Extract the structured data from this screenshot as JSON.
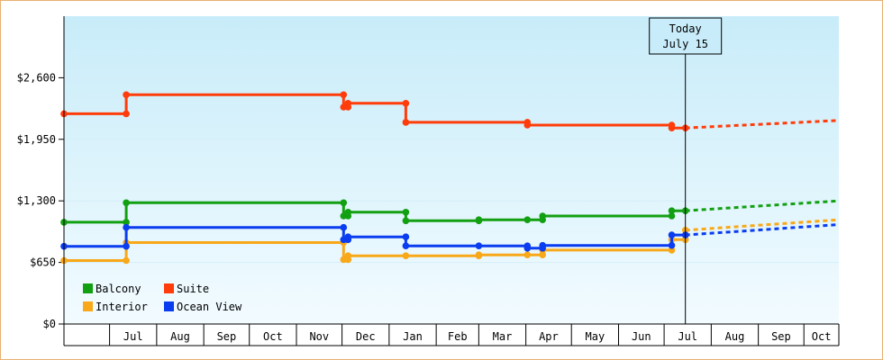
{
  "chart_data": {
    "type": "line",
    "title": "",
    "xlabel": "",
    "ylabel": "",
    "x_axis_type": "date",
    "x_range": [
      "2016-06-01",
      "2017-10-24"
    ],
    "ylim": [
      0,
      3250
    ],
    "y_ticks": [
      0,
      650,
      1300,
      1950,
      2600
    ],
    "y_tick_labels": [
      "$0",
      "$650",
      "$1,300",
      "$1,950",
      "$2,600"
    ],
    "x_tick_labels": [
      {
        "label": "Jul",
        "date": "2016-07-01"
      },
      {
        "label": "Aug",
        "date": "2016-08-01"
      },
      {
        "label": "Sep",
        "date": "2016-09-01"
      },
      {
        "label": "Oct",
        "date": "2016-10-01"
      },
      {
        "label": "Nov",
        "date": "2016-11-01"
      },
      {
        "label": "Dec",
        "date": "2016-12-01"
      },
      {
        "label": "Jan",
        "date": "2017-01-01"
      },
      {
        "label": "Feb",
        "date": "2017-02-01"
      },
      {
        "label": "Mar",
        "date": "2017-03-01"
      },
      {
        "label": "Apr",
        "date": "2017-04-01"
      },
      {
        "label": "May",
        "date": "2017-05-01"
      },
      {
        "label": "Jun",
        "date": "2017-06-01"
      },
      {
        "label": "Jul",
        "date": "2017-07-01"
      },
      {
        "label": "Aug",
        "date": "2017-08-01"
      },
      {
        "label": "Sep",
        "date": "2017-09-01"
      },
      {
        "label": "Oct",
        "date": "2017-10-01"
      }
    ],
    "today": {
      "date": "2017-07-15",
      "label_line1": "Today",
      "label_line2": "July 15"
    },
    "legend_position": "bottom-left",
    "series": [
      {
        "name": "Balcony",
        "color": "#12a012",
        "points": [
          [
            "2016-06-01",
            1075
          ],
          [
            "2016-07-12",
            1075
          ],
          [
            "2016-07-12",
            1280
          ],
          [
            "2016-12-02",
            1280
          ],
          [
            "2016-12-02",
            1140
          ],
          [
            "2016-12-05",
            1140
          ],
          [
            "2016-12-05",
            1180
          ],
          [
            "2017-01-12",
            1180
          ],
          [
            "2017-01-12",
            1090
          ],
          [
            "2017-03-01",
            1090
          ],
          [
            "2017-03-01",
            1100
          ],
          [
            "2017-04-02",
            1100
          ],
          [
            "2017-04-12",
            1100
          ],
          [
            "2017-04-12",
            1140
          ],
          [
            "2017-07-06",
            1140
          ],
          [
            "2017-07-06",
            1195
          ],
          [
            "2017-07-15",
            1195
          ]
        ],
        "forecast": [
          [
            "2017-07-15",
            1195
          ],
          [
            "2017-10-24",
            1300
          ]
        ]
      },
      {
        "name": "Suite",
        "color": "#ff3c0a",
        "points": [
          [
            "2016-06-01",
            2220
          ],
          [
            "2016-07-12",
            2220
          ],
          [
            "2016-07-12",
            2420
          ],
          [
            "2016-12-02",
            2420
          ],
          [
            "2016-12-02",
            2290
          ],
          [
            "2016-12-05",
            2290
          ],
          [
            "2016-12-05",
            2330
          ],
          [
            "2017-01-12",
            2330
          ],
          [
            "2017-01-12",
            2130
          ],
          [
            "2017-04-02",
            2130
          ],
          [
            "2017-04-02",
            2100
          ],
          [
            "2017-07-06",
            2100
          ],
          [
            "2017-07-06",
            2070
          ],
          [
            "2017-07-15",
            2070
          ]
        ],
        "forecast": [
          [
            "2017-07-15",
            2070
          ],
          [
            "2017-10-24",
            2150
          ]
        ]
      },
      {
        "name": "Interior",
        "color": "#f8a818",
        "points": [
          [
            "2016-06-01",
            670
          ],
          [
            "2016-07-12",
            670
          ],
          [
            "2016-07-12",
            860
          ],
          [
            "2016-12-02",
            860
          ],
          [
            "2016-12-02",
            680
          ],
          [
            "2016-12-05",
            680
          ],
          [
            "2016-12-05",
            720
          ],
          [
            "2017-01-12",
            720
          ],
          [
            "2017-03-01",
            720
          ],
          [
            "2017-03-01",
            730
          ],
          [
            "2017-04-02",
            730
          ],
          [
            "2017-04-12",
            730
          ],
          [
            "2017-04-12",
            780
          ],
          [
            "2017-07-06",
            780
          ],
          [
            "2017-07-06",
            890
          ],
          [
            "2017-07-15",
            890
          ],
          [
            "2017-07-15",
            990
          ]
        ],
        "forecast": [
          [
            "2017-07-15",
            990
          ],
          [
            "2017-10-24",
            1100
          ]
        ]
      },
      {
        "name": "Ocean View",
        "color": "#0a3cf0",
        "points": [
          [
            "2016-06-01",
            820
          ],
          [
            "2016-07-12",
            820
          ],
          [
            "2016-07-12",
            1020
          ],
          [
            "2016-12-02",
            1020
          ],
          [
            "2016-12-02",
            890
          ],
          [
            "2016-12-05",
            890
          ],
          [
            "2016-12-05",
            920
          ],
          [
            "2017-01-12",
            920
          ],
          [
            "2017-01-12",
            825
          ],
          [
            "2017-03-01",
            825
          ],
          [
            "2017-04-02",
            825
          ],
          [
            "2017-04-02",
            800
          ],
          [
            "2017-04-12",
            800
          ],
          [
            "2017-04-12",
            830
          ],
          [
            "2017-07-06",
            830
          ],
          [
            "2017-07-06",
            940
          ],
          [
            "2017-07-15",
            940
          ]
        ],
        "forecast": [
          [
            "2017-07-15",
            940
          ],
          [
            "2017-10-24",
            1050
          ]
        ]
      }
    ],
    "legend": [
      {
        "name": "Balcony",
        "color": "#12a012"
      },
      {
        "name": "Suite",
        "color": "#ff3c0a"
      },
      {
        "name": "Interior",
        "color": "#f8a818"
      },
      {
        "name": "Ocean View",
        "color": "#0a3cf0"
      }
    ]
  }
}
